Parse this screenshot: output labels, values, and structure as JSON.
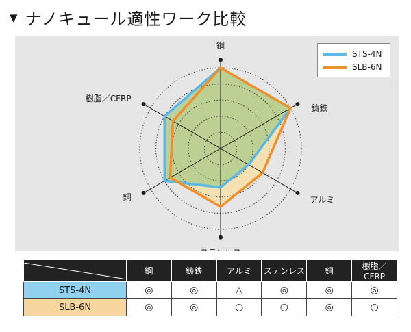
{
  "title": "ナノキュール適性ワーク比較",
  "title_marker": "▼",
  "legend": {
    "items": [
      {
        "label": "STS-4N",
        "color": "#5ab8e6"
      },
      {
        "label": "SLB-6N",
        "color": "#f0902a"
      }
    ]
  },
  "chart_data": {
    "type": "radar",
    "axes": [
      "鋼",
      "鋳鉄",
      "アルミ",
      "ステンレス",
      "銅",
      "樹脂／CFRP"
    ],
    "rmax": 5,
    "rings": 5,
    "series": [
      {
        "name": "STS-4N",
        "values": [
          5,
          5,
          2,
          2.4,
          4,
          4
        ],
        "stroke": "#5ab8e6",
        "fill": "#a9c98a"
      },
      {
        "name": "SLB-6N",
        "values": [
          5,
          5,
          3,
          3.6,
          3.6,
          3.4
        ],
        "stroke": "#f0902a",
        "fill": "#f7dfa0"
      }
    ]
  },
  "table": {
    "columns": [
      "鋼",
      "鋳鉄",
      "アルミ",
      "ステンレス",
      "銅",
      "樹脂／CFRP"
    ],
    "rows": [
      {
        "name": "STS-4N",
        "marks": [
          "◎",
          "◎",
          "△",
          "◎",
          "◎",
          "◎"
        ]
      },
      {
        "name": "SLB-6N",
        "marks": [
          "◎",
          "◎",
          "○",
          "○",
          "◎",
          "○"
        ]
      }
    ]
  }
}
